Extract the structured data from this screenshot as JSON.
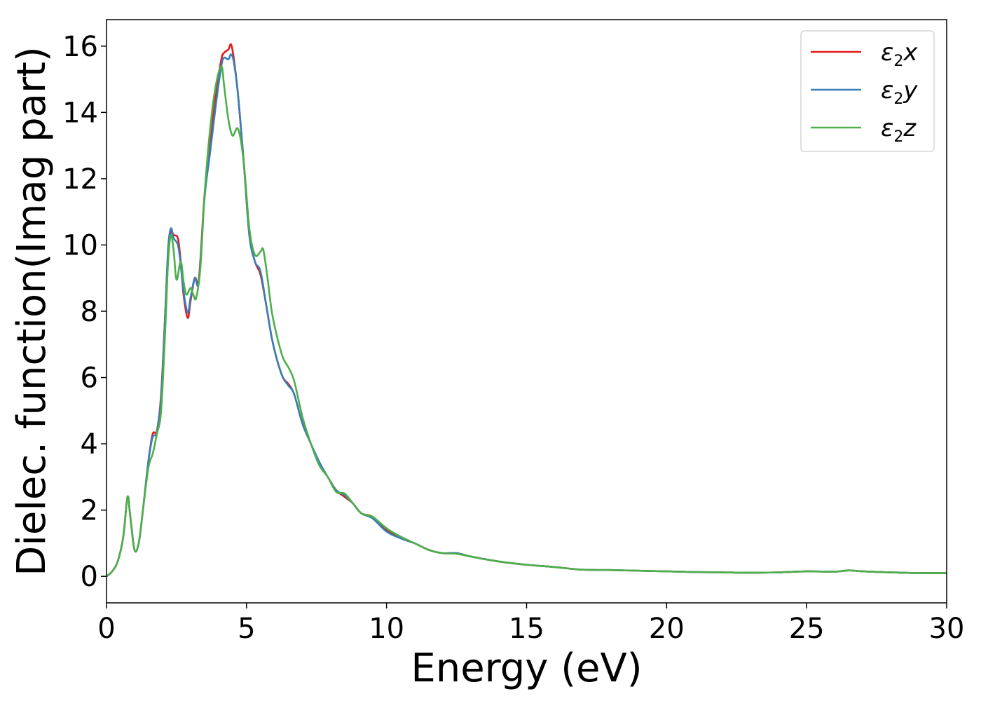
{
  "chart_data": {
    "type": "line",
    "xlabel": "Energy (eV)",
    "ylabel": "Dielec. function(Imag part)",
    "xlim": [
      0,
      30
    ],
    "ylim": [
      -0.8,
      16.8
    ],
    "xticks": [
      0,
      5,
      10,
      15,
      20,
      25,
      30
    ],
    "yticks": [
      0,
      2,
      4,
      6,
      8,
      10,
      12,
      14,
      16
    ],
    "grid": false,
    "legend_position": "top-right",
    "series": [
      {
        "name_base": "ε",
        "name_sub": "2",
        "name_axis": "x",
        "color": "#e41a1c",
        "x": [
          0,
          0.2,
          0.4,
          0.6,
          0.75,
          0.85,
          1.0,
          1.15,
          1.3,
          1.5,
          1.65,
          1.8,
          1.95,
          2.1,
          2.2,
          2.3,
          2.4,
          2.55,
          2.65,
          2.75,
          2.9,
          3.0,
          3.15,
          3.3,
          3.5,
          3.7,
          3.9,
          4.1,
          4.2,
          4.35,
          4.45,
          4.55,
          4.7,
          4.9,
          5.1,
          5.3,
          5.5,
          5.7,
          5.9,
          6.1,
          6.3,
          6.5,
          6.7,
          7.0,
          7.3,
          7.6,
          7.9,
          8.2,
          8.5,
          8.8,
          9.1,
          9.5,
          10.0,
          10.5,
          11.0,
          11.5,
          12.0,
          12.5,
          13.0,
          14.0,
          15.0,
          16.0,
          17.0,
          18.0,
          19.0,
          20.0,
          21.0,
          22.0,
          23.0,
          24.0,
          25.0,
          26.0,
          26.5,
          27.0,
          28.0,
          29.0,
          30.0
        ],
        "values": [
          0.0,
          0.15,
          0.45,
          1.2,
          2.4,
          1.8,
          0.8,
          1.0,
          2.0,
          3.5,
          4.3,
          4.4,
          5.5,
          8.0,
          9.8,
          10.4,
          10.3,
          10.2,
          9.5,
          8.5,
          7.8,
          8.3,
          9.0,
          9.0,
          11.5,
          13.0,
          14.5,
          15.6,
          15.8,
          15.9,
          16.05,
          15.6,
          14.5,
          12.5,
          10.3,
          9.5,
          9.1,
          8.2,
          7.2,
          6.5,
          6.0,
          5.8,
          5.5,
          4.6,
          4.0,
          3.4,
          3.0,
          2.6,
          2.4,
          2.2,
          1.9,
          1.8,
          1.4,
          1.15,
          1.0,
          0.8,
          0.7,
          0.7,
          0.6,
          0.45,
          0.35,
          0.28,
          0.2,
          0.19,
          0.17,
          0.15,
          0.13,
          0.12,
          0.11,
          0.12,
          0.15,
          0.14,
          0.18,
          0.15,
          0.12,
          0.1,
          0.1
        ]
      },
      {
        "name_base": "ε",
        "name_sub": "2",
        "name_axis": "y",
        "color": "#377eb8",
        "x": [
          0,
          0.2,
          0.4,
          0.6,
          0.75,
          0.85,
          1.0,
          1.15,
          1.3,
          1.5,
          1.65,
          1.8,
          1.95,
          2.1,
          2.2,
          2.3,
          2.4,
          2.55,
          2.65,
          2.75,
          2.9,
          3.0,
          3.15,
          3.3,
          3.5,
          3.7,
          3.9,
          4.1,
          4.2,
          4.35,
          4.45,
          4.55,
          4.7,
          4.9,
          5.1,
          5.3,
          5.5,
          5.7,
          5.9,
          6.1,
          6.3,
          6.5,
          6.7,
          7.0,
          7.3,
          7.6,
          7.9,
          8.2,
          8.5,
          8.8,
          9.1,
          9.5,
          10.0,
          10.5,
          11.0,
          11.5,
          12.0,
          12.5,
          13.0,
          14.0,
          15.0,
          16.0,
          17.0,
          18.0,
          19.0,
          20.0,
          21.0,
          22.0,
          23.0,
          24.0,
          25.0,
          26.0,
          26.5,
          27.0,
          28.0,
          29.0,
          30.0
        ],
        "values": [
          0.0,
          0.15,
          0.45,
          1.2,
          2.4,
          1.8,
          0.8,
          1.0,
          2.0,
          3.5,
          4.2,
          4.35,
          5.4,
          8.0,
          9.9,
          10.5,
          10.2,
          10.0,
          9.4,
          8.6,
          7.95,
          8.4,
          9.0,
          8.9,
          11.4,
          12.8,
          14.2,
          15.4,
          15.65,
          15.6,
          15.75,
          15.5,
          14.5,
          12.5,
          10.3,
          9.5,
          9.2,
          8.2,
          7.2,
          6.5,
          6.0,
          5.75,
          5.5,
          4.6,
          4.0,
          3.45,
          3.0,
          2.6,
          2.45,
          2.2,
          1.9,
          1.75,
          1.35,
          1.15,
          1.0,
          0.8,
          0.7,
          0.7,
          0.6,
          0.45,
          0.35,
          0.28,
          0.2,
          0.19,
          0.17,
          0.15,
          0.13,
          0.12,
          0.11,
          0.12,
          0.15,
          0.14,
          0.18,
          0.15,
          0.12,
          0.1,
          0.1
        ]
      },
      {
        "name_base": "ε",
        "name_sub": "2",
        "name_axis": "z",
        "color": "#4daf4a",
        "x": [
          0,
          0.2,
          0.4,
          0.6,
          0.75,
          0.85,
          1.0,
          1.15,
          1.3,
          1.5,
          1.65,
          1.8,
          1.95,
          2.1,
          2.2,
          2.3,
          2.4,
          2.5,
          2.65,
          2.75,
          2.85,
          3.0,
          3.1,
          3.2,
          3.35,
          3.5,
          3.7,
          3.9,
          4.1,
          4.2,
          4.35,
          4.5,
          4.7,
          4.9,
          5.1,
          5.3,
          5.5,
          5.6,
          5.75,
          5.9,
          6.1,
          6.3,
          6.5,
          6.7,
          7.0,
          7.3,
          7.6,
          7.9,
          8.2,
          8.5,
          8.8,
          9.1,
          9.5,
          10.0,
          10.5,
          11.0,
          11.5,
          12.0,
          12.5,
          13.0,
          14.0,
          15.0,
          16.0,
          17.0,
          18.0,
          19.0,
          20.0,
          21.0,
          22.0,
          23.0,
          24.0,
          25.0,
          26.0,
          26.5,
          27.0,
          28.0,
          29.0,
          30.0
        ],
        "values": [
          0.0,
          0.15,
          0.45,
          1.2,
          2.4,
          1.8,
          0.8,
          1.0,
          2.0,
          3.3,
          3.7,
          4.3,
          5.0,
          7.5,
          9.5,
          10.3,
          9.8,
          8.95,
          9.5,
          8.9,
          8.5,
          8.7,
          8.5,
          8.4,
          9.3,
          11.5,
          13.5,
          14.8,
          15.4,
          14.8,
          13.8,
          13.3,
          13.5,
          12.5,
          10.5,
          9.7,
          9.8,
          9.85,
          9.0,
          8.0,
          7.2,
          6.6,
          6.3,
          5.9,
          4.8,
          4.0,
          3.35,
          3.0,
          2.55,
          2.5,
          2.2,
          1.9,
          1.8,
          1.45,
          1.2,
          1.0,
          0.8,
          0.7,
          0.68,
          0.6,
          0.45,
          0.35,
          0.28,
          0.2,
          0.19,
          0.17,
          0.15,
          0.13,
          0.12,
          0.11,
          0.12,
          0.15,
          0.14,
          0.18,
          0.15,
          0.12,
          0.1,
          0.1
        ]
      }
    ]
  }
}
